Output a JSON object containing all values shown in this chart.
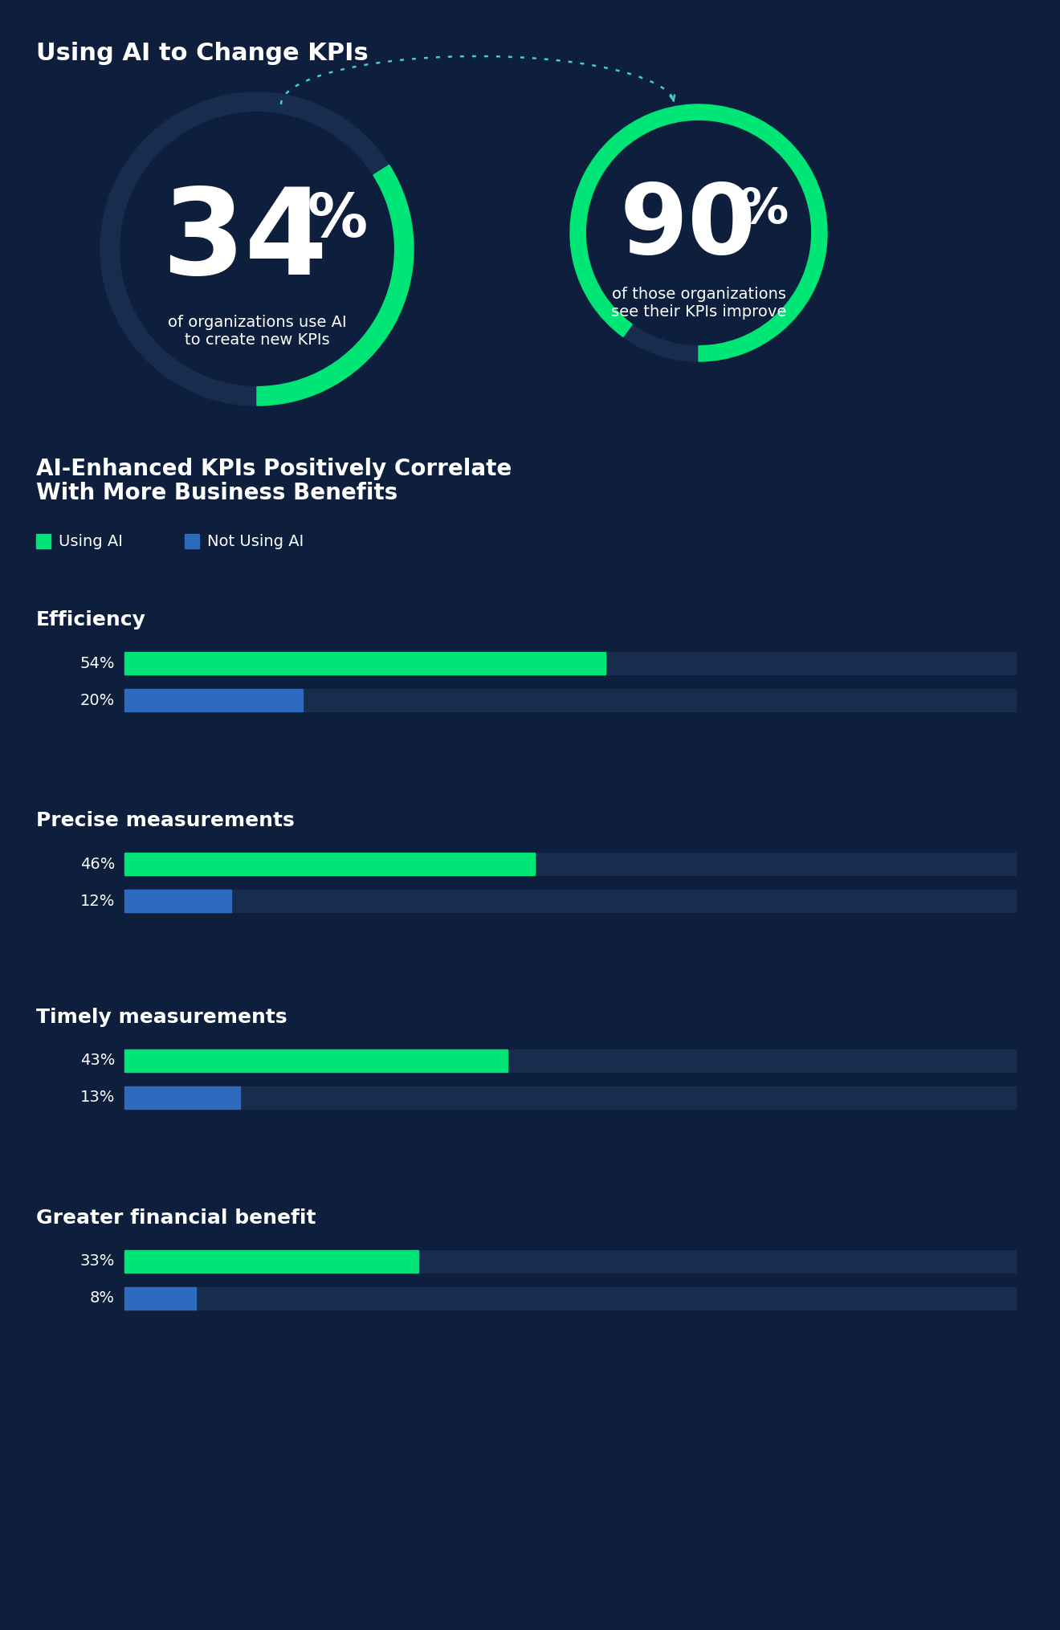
{
  "bg_color": "#0d1f3c",
  "title1": "Using AI to Change KPIs",
  "title2_line1": "AI-Enhanced KPIs Positively Correlate",
  "title2_line2": "With More Business Benefits",
  "donut1_pct": 34,
  "donut1_label_line1": "of organizations use AI",
  "donut1_label_line2": "to create new KPIs",
  "donut2_pct": 90,
  "donut2_label_line1": "of those organizations",
  "donut2_label_line2": "see their KPIs improve",
  "green_color": "#00e676",
  "dark_ring_color": "#162d50",
  "bar_bg_color": "#162d50",
  "blue_bar_color": "#2e6bbf",
  "legend_using_ai": "Using AI",
  "legend_not_using_ai": "Not Using AI",
  "categories": [
    "Efficiency",
    "Precise measurements",
    "Timely measurements",
    "Greater financial benefit"
  ],
  "ai_values": [
    54,
    46,
    43,
    33
  ],
  "no_ai_values": [
    20,
    12,
    13,
    8
  ],
  "text_color": "#ffffff",
  "arrow_color": "#3ecfcf"
}
